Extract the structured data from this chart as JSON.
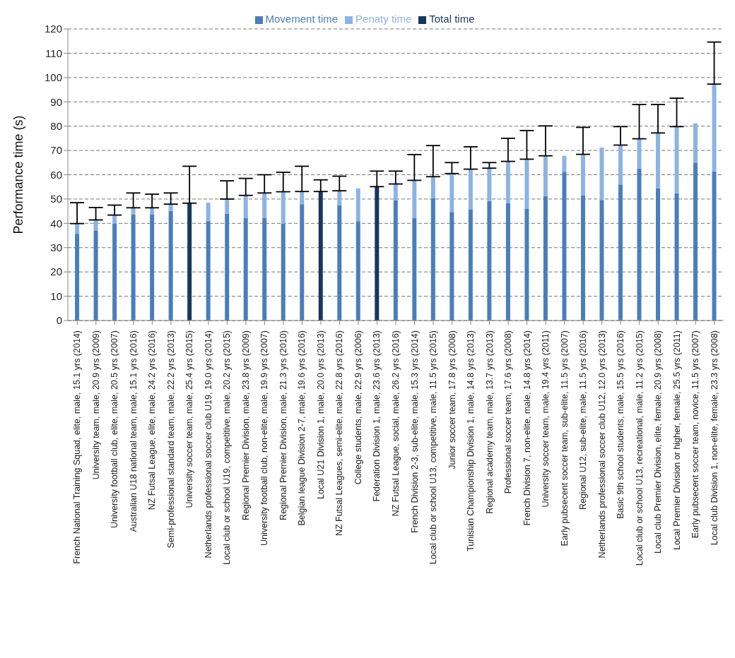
{
  "chart_data": {
    "type": "bar",
    "stacked": true,
    "ylabel": "Performance time (s)",
    "categories": [
      "French National Training Squad, elite, male, 15.1 yrs (2014)",
      "University team, male, 20.9 yrs (2009)",
      "University football club, elite, male, 20.5 yrs (2007)",
      "Australian U18 national team, male, 15.1 yrs (2016)",
      "NZ Futsal League, elite, male, 24.2 yrs (2016)",
      "Semi-professional standard team, male, 22.2 yrs (2013)",
      "University soccer team, male, 25.4 yrs (2015)",
      "Netherlands professional soccer club U19, 19.0 yrs (2014)",
      "Local club or school U19, competitive, male, 20.2 yrs (2015)",
      "Regional Premier Division, male, 23.8 yrs (2009)",
      "University football club, non-elite, male, 19.9 yrs (2007)",
      "Regional Premier Division, male, 21.3 yrs (2010)",
      "Belgian league Division 2-7, male, 19.6 yrs (2016)",
      "Local U21 Division 1, male, 20.0 yrs (2013)",
      "NZ Futsal Leagues, semi-elite, male, 22.8 yrs (2016)",
      "College students, male, 22.9 yrs (2006)",
      "Federation Division 1, male, 23.6 yrs (2013)",
      "NZ Futsal League, social, male, 26.2 yrs (2016)",
      "French Division 2-3, sub-elite, male, 15.3 yrs (2014)",
      "Local club or school U13, competitive, male, 11.5 yrs (2015)",
      "Junior soccer team, 17.8 yrs (2008)",
      "Tunisian Championship Division 1, male, 14.8 yrs (2013)",
      "Regional academy team, male, 13.7 yrs (2013)",
      "Professional soccer team, 17.6 yrs (2008)",
      "French Division 7, non-elite, male, 14.8 yrs (2014)",
      "University soccer team, male, 19.4 yrs (2011)",
      "Early pubsecent soccer team, sub-elite, 11.5 yrs (2007)",
      "Regional U12, sub-elite, male, 11.5 yrs (2016)",
      "Netherlands professional soccer club U12, 12.0 yrs (2013)",
      "Basic 9th school students, male, 15.5 yrs (2016)",
      "Local club or school U13, recreational, male, 11.2 yrs (2015)",
      "Local club Premier Division, elite, female, 20.9 yrs (2008)",
      "Local Premier Division or higher, female, 25.5 yrs (2011)",
      "Early pubsecent soccer team, novice, 11.5 yrs (2007)",
      "Local club Division 1, non-elite, female, 23.3 yrs (2008)"
    ],
    "series": [
      {
        "name": "Movement time",
        "color": "#4a7ebb",
        "values": [
          35.7,
          37.1,
          39.9,
          43.6,
          43.6,
          45.1,
          null,
          40.9,
          43.9,
          42.1,
          42.1,
          39.9,
          47.9,
          null,
          47.4,
          40.9,
          null,
          49.4,
          42.1,
          50.4,
          44.7,
          45.6,
          49.2,
          48.4,
          45.9,
          51.2,
          61.2,
          51.4,
          49.6,
          56.0,
          62.5,
          54.5,
          52.4,
          65.0,
          61.4
        ]
      },
      {
        "name": "Penaty time",
        "color": "#8db3e2",
        "values": [
          4.2,
          4.3,
          3.5,
          2.8,
          2.8,
          2.8,
          null,
          7.6,
          6.1,
          9.4,
          10.4,
          13.1,
          5.2,
          null,
          6.0,
          13.5,
          null,
          6.8,
          15.6,
          8.8,
          15.8,
          16.7,
          13.5,
          17.1,
          20.5,
          16.6,
          6.6,
          17.0,
          21.6,
          16.2,
          12.3,
          22.7,
          27.4,
          16.2,
          35.9
        ],
        "errors": [
          [
            39.9,
            48.5
          ],
          [
            41.4,
            46.5
          ],
          [
            43.4,
            47.5
          ],
          [
            46.4,
            52.5
          ],
          [
            46.4,
            52.0
          ],
          [
            47.9,
            52.5
          ],
          null,
          null,
          [
            50.0,
            57.5
          ],
          [
            51.5,
            58.5
          ],
          [
            52.5,
            60.0
          ],
          [
            53.0,
            61.0
          ],
          [
            53.1,
            63.5
          ],
          null,
          [
            53.4,
            59.4
          ],
          null,
          null,
          [
            56.2,
            61.5
          ],
          [
            57.7,
            68.3
          ],
          [
            59.2,
            72.0
          ],
          [
            60.5,
            65.0
          ],
          [
            62.3,
            71.5
          ],
          [
            62.7,
            65.0
          ],
          [
            65.5,
            75.0
          ],
          [
            66.4,
            78.2
          ],
          [
            67.8,
            80.1
          ],
          null,
          [
            68.4,
            79.5
          ],
          null,
          [
            72.2,
            79.8
          ],
          [
            74.8,
            88.9
          ],
          [
            77.2,
            88.9
          ],
          [
            79.8,
            91.5
          ],
          null,
          [
            97.3,
            114.6
          ]
        ]
      },
      {
        "name": "Total time",
        "color": "#17375e",
        "values": [
          null,
          null,
          null,
          null,
          null,
          null,
          48.3,
          null,
          null,
          null,
          null,
          null,
          null,
          53.1,
          null,
          null,
          55.1,
          null,
          null,
          null,
          null,
          null,
          null,
          null,
          null,
          null,
          null,
          null,
          null,
          null,
          null,
          null,
          null,
          null,
          null
        ],
        "errors": [
          null,
          null,
          null,
          null,
          null,
          null,
          [
            48.3,
            63.5
          ],
          null,
          null,
          null,
          null,
          null,
          null,
          [
            53.1,
            57.9
          ],
          null,
          null,
          [
            55.1,
            61.5
          ],
          null,
          null,
          null,
          null,
          null,
          null,
          null,
          null,
          null,
          null,
          null,
          null,
          null,
          null,
          null,
          null,
          null,
          null
        ]
      }
    ],
    "ylim": [
      0,
      120
    ],
    "yticks": [
      0,
      10,
      20,
      30,
      40,
      50,
      60,
      70,
      80,
      90,
      100,
      110,
      120
    ],
    "grid": "y",
    "legend": "top"
  }
}
